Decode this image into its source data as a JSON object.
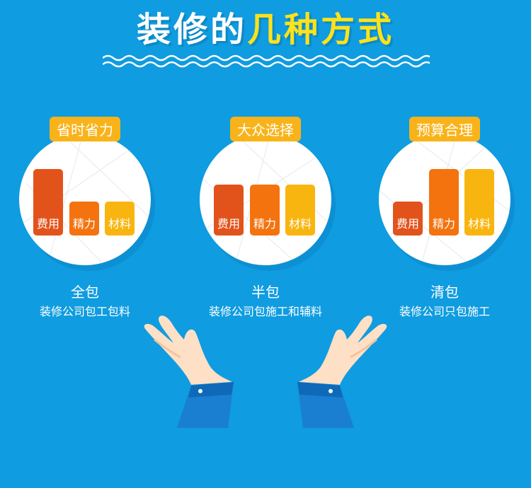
{
  "header": {
    "title_white": "装修的",
    "title_yellow": "几种方式"
  },
  "items": [
    {
      "badge": "省时省力",
      "bars": [
        {
          "label": "费用",
          "level": 3
        },
        {
          "label": "精力",
          "level": 1
        },
        {
          "label": "材料",
          "level": 1
        }
      ],
      "name": "全包",
      "desc": "装修公司包工包料"
    },
    {
      "badge": "大众选择",
      "bars": [
        {
          "label": "费用",
          "level": 2
        },
        {
          "label": "精力",
          "level": 2
        },
        {
          "label": "材料",
          "level": 2
        }
      ],
      "name": "半包",
      "desc": "装修公司包施工和辅料"
    },
    {
      "badge": "预算合理",
      "bars": [
        {
          "label": "费用",
          "level": 1
        },
        {
          "label": "精力",
          "level": 3
        },
        {
          "label": "材料",
          "level": 3
        }
      ],
      "name": "清包",
      "desc": "装修公司只包施工"
    }
  ],
  "colors": {
    "background": "#0f9ce0",
    "title_yellow": "#ffe21a",
    "badge": "#f9b31a",
    "bar_cost": "#e2531b",
    "bar_effort": "#f4730f",
    "bar_material": "#f9b50f"
  }
}
